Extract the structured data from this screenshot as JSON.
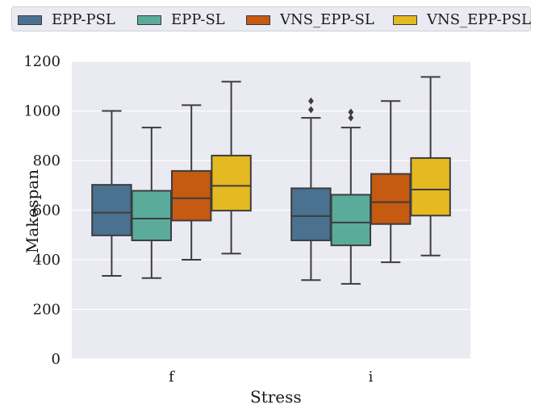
{
  "chart_data": {
    "type": "box",
    "categories": [
      "f",
      "i"
    ],
    "xlabel": "Stress",
    "ylabel": "Makespan",
    "ylim": [
      0,
      1200
    ],
    "yticks": [
      0,
      200,
      400,
      600,
      800,
      1000,
      1200
    ],
    "grid": true,
    "legend_position": "top",
    "series": [
      {
        "name": "EPP-PSL",
        "color": "#4a7190",
        "boxes": [
          {
            "category": "f",
            "whisker_low": 335,
            "q1": 498,
            "median": 590,
            "q3": 702,
            "whisker_high": 1000,
            "outliers": []
          },
          {
            "category": "i",
            "whisker_low": 318,
            "q1": 478,
            "median": 576,
            "q3": 688,
            "whisker_high": 972,
            "outliers": [
              1005,
              1040
            ]
          }
        ]
      },
      {
        "name": "EPP-SL",
        "color": "#5bab9a",
        "boxes": [
          {
            "category": "f",
            "whisker_low": 326,
            "q1": 478,
            "median": 566,
            "q3": 678,
            "whisker_high": 933,
            "outliers": []
          },
          {
            "category": "i",
            "whisker_low": 303,
            "q1": 458,
            "median": 550,
            "q3": 662,
            "whisker_high": 933,
            "outliers": [
              972,
              995
            ]
          }
        ]
      },
      {
        "name": "VNS_EPP-SL",
        "color": "#c55a11",
        "boxes": [
          {
            "category": "f",
            "whisker_low": 400,
            "q1": 558,
            "median": 648,
            "q3": 758,
            "whisker_high": 1023,
            "outliers": []
          },
          {
            "category": "i",
            "whisker_low": 390,
            "q1": 544,
            "median": 632,
            "q3": 746,
            "whisker_high": 1040,
            "outliers": []
          }
        ]
      },
      {
        "name": "VNS_EPP-PSL",
        "color": "#e4b921",
        "boxes": [
          {
            "category": "f",
            "whisker_low": 425,
            "q1": 598,
            "median": 698,
            "q3": 820,
            "whisker_high": 1118,
            "outliers": []
          },
          {
            "category": "i",
            "whisker_low": 417,
            "q1": 578,
            "median": 683,
            "q3": 810,
            "whisker_high": 1137,
            "outliers": []
          }
        ]
      }
    ]
  }
}
